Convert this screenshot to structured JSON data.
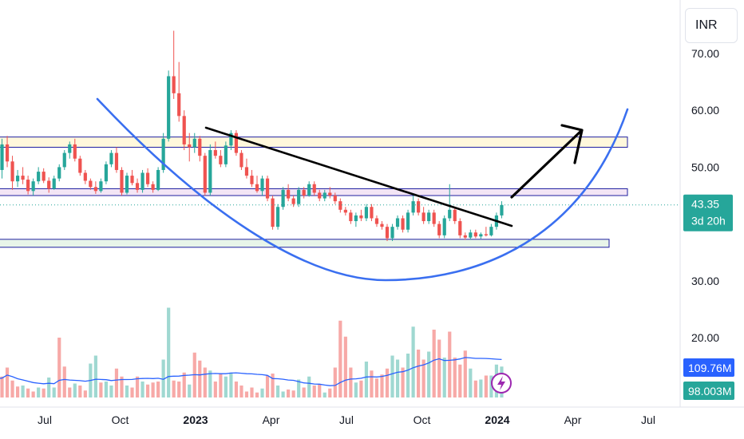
{
  "currency_button": "INR",
  "chart_data": {
    "type": "candlestick",
    "price_axis": {
      "ticks": [
        "70.00",
        "60.00",
        "50.00",
        "30.00",
        "20.00"
      ],
      "ylim": [
        15,
        73
      ]
    },
    "time_axis": {
      "labels": [
        {
          "label": "Jul",
          "month": -6,
          "bold": false
        },
        {
          "label": "Oct",
          "month": -3,
          "bold": false
        },
        {
          "label": "2023",
          "month": 0,
          "bold": true
        },
        {
          "label": "Apr",
          "month": 3,
          "bold": false
        },
        {
          "label": "Jul",
          "month": 6,
          "bold": false
        },
        {
          "label": "Oct",
          "month": 9,
          "bold": false
        },
        {
          "label": "2024",
          "month": 12,
          "bold": true
        },
        {
          "label": "Apr",
          "month": 15,
          "bold": false
        },
        {
          "label": "Jul",
          "month": 18,
          "bold": false
        }
      ]
    },
    "last_price": {
      "value": "43.35",
      "countdown": "3d 20h",
      "price": 43.35,
      "color": "#26a69a"
    },
    "volume_tags": [
      {
        "value": "109.76M",
        "color": "#2962ff"
      },
      {
        "value": "98.003M",
        "color": "#26a69a"
      }
    ],
    "colors": {
      "up": "#26a69a",
      "down": "#ef5350",
      "up_volume": "#9fd8d1",
      "down_volume": "#f7a9a7",
      "volume_ma": "#2962ff"
    },
    "zones": [
      {
        "name": "resistance",
        "top": 55.3,
        "bottom": 53.5,
        "fill": "#fff8dc",
        "stroke": "#1f1fa0"
      },
      {
        "name": "support",
        "top": 46.2,
        "bottom": 45.0,
        "fill": "#f3e5f5",
        "stroke": "#1f1fa0"
      },
      {
        "name": "base",
        "top": 37.3,
        "bottom": 35.9,
        "fill": "#e8f5e9",
        "stroke": "#1f1fa0"
      }
    ],
    "candles": [
      [
        48.0,
        50.0,
        46.5,
        49.5
      ],
      [
        49.5,
        55.0,
        48.0,
        54.0
      ],
      [
        54.0,
        55.5,
        50.0,
        51.0
      ],
      [
        51.0,
        52.0,
        46.0,
        47.5
      ],
      [
        47.5,
        49.5,
        46.5,
        48.5
      ],
      [
        48.5,
        50.0,
        47.0,
        47.8
      ],
      [
        47.8,
        48.5,
        45.2,
        45.8
      ],
      [
        45.8,
        48.0,
        45.0,
        47.5
      ],
      [
        47.5,
        50.0,
        47.0,
        49.2
      ],
      [
        49.2,
        49.8,
        47.2,
        47.6
      ],
      [
        47.6,
        48.2,
        45.5,
        46.2
      ],
      [
        46.2,
        48.5,
        46.0,
        48.0
      ],
      [
        48.0,
        50.5,
        47.5,
        50.0
      ],
      [
        50.0,
        53.0,
        49.5,
        52.5
      ],
      [
        52.5,
        54.5,
        51.5,
        54.0
      ],
      [
        54.0,
        55.0,
        51.0,
        51.5
      ],
      [
        51.5,
        52.0,
        48.5,
        49.0
      ],
      [
        49.0,
        49.5,
        47.0,
        47.6
      ],
      [
        47.6,
        48.0,
        46.0,
        46.5
      ],
      [
        46.5,
        47.5,
        45.3,
        45.8
      ],
      [
        45.8,
        48.0,
        45.5,
        47.5
      ],
      [
        47.5,
        51.0,
        47.0,
        50.5
      ],
      [
        50.5,
        53.0,
        50.0,
        52.5
      ],
      [
        52.5,
        53.5,
        49.0,
        49.5
      ],
      [
        49.5,
        50.0,
        45.0,
        45.5
      ],
      [
        45.5,
        49.0,
        45.2,
        48.5
      ],
      [
        48.5,
        49.5,
        46.8,
        47.2
      ],
      [
        47.2,
        48.0,
        45.5,
        46.0
      ],
      [
        46.0,
        49.5,
        45.5,
        49.0
      ],
      [
        49.0,
        49.8,
        46.5,
        47.0
      ],
      [
        47.0,
        47.5,
        45.5,
        46.0
      ],
      [
        46.0,
        50.0,
        45.8,
        49.5
      ],
      [
        49.5,
        56.0,
        49.0,
        55.0
      ],
      [
        55.0,
        67.0,
        54.5,
        66.0
      ],
      [
        66.0,
        74.0,
        62.0,
        63.0
      ],
      [
        63.0,
        68.5,
        58.0,
        59.0
      ],
      [
        59.0,
        60.0,
        53.0,
        54.0
      ],
      [
        54.0,
        56.0,
        51.0,
        53.5
      ],
      [
        53.5,
        56.0,
        52.5,
        55.0
      ],
      [
        55.0,
        55.5,
        51.0,
        52.0
      ],
      [
        52.0,
        52.5,
        45.0,
        45.5
      ],
      [
        45.5,
        54.0,
        45.0,
        53.0
      ],
      [
        53.0,
        54.5,
        51.5,
        52.0
      ],
      [
        52.0,
        53.0,
        50.0,
        50.5
      ],
      [
        50.5,
        54.5,
        50.0,
        53.8
      ],
      [
        53.8,
        56.5,
        53.0,
        56.0
      ],
      [
        56.0,
        56.5,
        52.0,
        52.5
      ],
      [
        52.5,
        53.0,
        49.5,
        50.0
      ],
      [
        50.0,
        51.5,
        48.0,
        48.5
      ],
      [
        48.5,
        49.5,
        46.5,
        47.0
      ],
      [
        47.0,
        48.5,
        45.5,
        45.8
      ],
      [
        45.8,
        48.5,
        45.0,
        48.0
      ],
      [
        48.0,
        48.5,
        44.0,
        44.5
      ],
      [
        44.5,
        45.0,
        39.0,
        39.5
      ],
      [
        39.5,
        43.5,
        39.0,
        43.0
      ],
      [
        43.0,
        46.5,
        42.5,
        46.0
      ],
      [
        46.0,
        47.0,
        44.0,
        44.5
      ],
      [
        44.5,
        45.0,
        43.0,
        43.5
      ],
      [
        43.5,
        46.5,
        43.0,
        46.0
      ],
      [
        46.0,
        46.5,
        44.5,
        45.0
      ],
      [
        45.0,
        47.5,
        44.8,
        47.0
      ],
      [
        47.0,
        47.5,
        45.0,
        45.5
      ],
      [
        45.5,
        46.0,
        44.0,
        44.5
      ],
      [
        44.5,
        46.0,
        44.0,
        45.5
      ],
      [
        45.5,
        46.5,
        44.5,
        45.0
      ],
      [
        45.0,
        45.5,
        43.5,
        44.0
      ],
      [
        44.0,
        44.5,
        42.0,
        42.5
      ],
      [
        42.5,
        43.0,
        41.5,
        42.0
      ],
      [
        42.0,
        42.5,
        40.0,
        40.5
      ],
      [
        40.5,
        42.0,
        39.5,
        41.5
      ],
      [
        41.5,
        42.5,
        40.5,
        41.0
      ],
      [
        41.0,
        43.5,
        40.5,
        43.0
      ],
      [
        43.0,
        43.5,
        40.5,
        41.0
      ],
      [
        41.0,
        41.5,
        39.5,
        40.0
      ],
      [
        40.0,
        40.5,
        39.0,
        39.5
      ],
      [
        39.5,
        40.0,
        37.0,
        37.5
      ],
      [
        37.5,
        40.0,
        37.0,
        39.5
      ],
      [
        39.5,
        41.5,
        39.0,
        41.0
      ],
      [
        41.0,
        41.5,
        38.5,
        39.0
      ],
      [
        39.0,
        42.5,
        38.5,
        42.0
      ],
      [
        42.0,
        45.0,
        41.5,
        44.0
      ],
      [
        44.0,
        44.5,
        41.5,
        42.0
      ],
      [
        42.0,
        43.0,
        40.0,
        40.5
      ],
      [
        40.5,
        42.5,
        40.0,
        42.0
      ],
      [
        42.0,
        42.5,
        39.5,
        40.0
      ],
      [
        40.0,
        40.5,
        37.5,
        38.0
      ],
      [
        38.0,
        41.5,
        37.5,
        41.0
      ],
      [
        41.0,
        47.0,
        40.5,
        42.5
      ],
      [
        42.5,
        43.0,
        40.0,
        40.5
      ],
      [
        40.5,
        41.0,
        37.5,
        38.0
      ],
      [
        38.0,
        38.5,
        37.2,
        37.6
      ],
      [
        37.6,
        39.0,
        37.2,
        38.5
      ],
      [
        38.5,
        39.0,
        37.5,
        37.8
      ],
      [
        37.8,
        38.5,
        37.4,
        38.2
      ],
      [
        38.2,
        39.5,
        37.8,
        38.0
      ],
      [
        38.0,
        40.0,
        37.8,
        39.5
      ],
      [
        39.5,
        42.0,
        39.0,
        41.5
      ],
      [
        41.5,
        44.0,
        41.0,
        43.35
      ]
    ],
    "volumes": [
      [
        0.2,
        "up"
      ],
      [
        0.21,
        "down"
      ],
      [
        0.3,
        "down"
      ],
      [
        0.17,
        "down"
      ],
      [
        0.11,
        "down"
      ],
      [
        0.12,
        "up"
      ],
      [
        0.09,
        "down"
      ],
      [
        0.06,
        "down"
      ],
      [
        0.1,
        "up"
      ],
      [
        0.09,
        "down"
      ],
      [
        0.2,
        "up"
      ],
      [
        0.1,
        "up"
      ],
      [
        0.6,
        "down"
      ],
      [
        0.31,
        "down"
      ],
      [
        0.1,
        "down"
      ],
      [
        0.14,
        "up"
      ],
      [
        0.12,
        "down"
      ],
      [
        0.07,
        "down"
      ],
      [
        0.34,
        "up"
      ],
      [
        0.42,
        "up"
      ],
      [
        0.15,
        "down"
      ],
      [
        0.16,
        "up"
      ],
      [
        0.12,
        "up"
      ],
      [
        0.29,
        "down"
      ],
      [
        0.21,
        "down"
      ],
      [
        0.12,
        "up"
      ],
      [
        0.1,
        "down"
      ],
      [
        0.21,
        "down"
      ],
      [
        0.16,
        "up"
      ],
      [
        0.13,
        "down"
      ],
      [
        0.15,
        "down"
      ],
      [
        0.16,
        "down"
      ],
      [
        0.38,
        "up"
      ],
      [
        0.9,
        "up"
      ],
      [
        0.17,
        "down"
      ],
      [
        0.16,
        "down"
      ],
      [
        0.25,
        "down"
      ],
      [
        0.13,
        "up"
      ],
      [
        0.45,
        "down"
      ],
      [
        0.37,
        "down"
      ],
      [
        0.3,
        "down"
      ],
      [
        0.27,
        "up"
      ],
      [
        0.16,
        "down"
      ],
      [
        0.24,
        "down"
      ],
      [
        0.21,
        "up"
      ],
      [
        0.25,
        "up"
      ],
      [
        0.16,
        "down"
      ],
      [
        0.12,
        "down"
      ],
      [
        0.06,
        "down"
      ],
      [
        0.1,
        "down"
      ],
      [
        0.05,
        "down"
      ],
      [
        0.09,
        "up"
      ],
      [
        0.22,
        "down"
      ],
      [
        0.24,
        "down"
      ],
      [
        0.12,
        "up"
      ],
      [
        0.06,
        "up"
      ],
      [
        0.08,
        "down"
      ],
      [
        0.07,
        "down"
      ],
      [
        0.18,
        "up"
      ],
      [
        0.1,
        "down"
      ],
      [
        0.21,
        "up"
      ],
      [
        0.12,
        "down"
      ],
      [
        0.13,
        "down"
      ],
      [
        0.05,
        "up"
      ],
      [
        0.09,
        "down"
      ],
      [
        0.3,
        "down"
      ],
      [
        0.77,
        "down"
      ],
      [
        0.61,
        "down"
      ],
      [
        0.3,
        "down"
      ],
      [
        0.15,
        "up"
      ],
      [
        0.17,
        "down"
      ],
      [
        0.36,
        "up"
      ],
      [
        0.27,
        "down"
      ],
      [
        0.19,
        "down"
      ],
      [
        0.23,
        "down"
      ],
      [
        0.29,
        "down"
      ],
      [
        0.42,
        "up"
      ],
      [
        0.38,
        "up"
      ],
      [
        0.3,
        "down"
      ],
      [
        0.44,
        "up"
      ],
      [
        0.71,
        "up"
      ],
      [
        0.48,
        "down"
      ],
      [
        0.38,
        "down"
      ],
      [
        0.46,
        "up"
      ],
      [
        0.68,
        "down"
      ],
      [
        0.58,
        "down"
      ],
      [
        0.4,
        "up"
      ],
      [
        0.66,
        "down"
      ],
      [
        0.4,
        "down"
      ],
      [
        0.33,
        "down"
      ],
      [
        0.47,
        "down"
      ],
      [
        0.29,
        "up"
      ],
      [
        0.17,
        "down"
      ],
      [
        0.18,
        "up"
      ],
      [
        0.22,
        "down"
      ],
      [
        0.22,
        "up"
      ],
      [
        0.33,
        "up"
      ],
      [
        0.31,
        "up"
      ]
    ]
  }
}
